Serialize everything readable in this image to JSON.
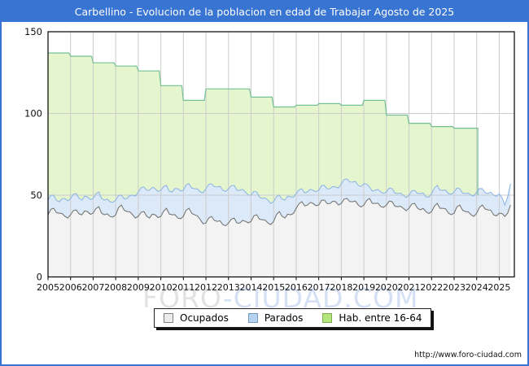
{
  "window": {
    "title": "Carbellino - Evolucion de la poblacion en edad de Trabajar Agosto de 2025",
    "footer_url": "http://www.foro-ciudad.com"
  },
  "watermark": {
    "part1": "FORO",
    "part2": "-CIUDAD.COM"
  },
  "legend": {
    "items": [
      {
        "label": "Ocupados",
        "swatch_fill": "#ececec",
        "swatch_border": "#808080"
      },
      {
        "label": "Parados",
        "swatch_fill": "#b5d2f0",
        "swatch_border": "#7599bd"
      },
      {
        "label": "Hab. entre 16-64",
        "swatch_fill": "#b5e67c",
        "swatch_border": "#7fa952"
      }
    ]
  },
  "colors": {
    "frame_blue": "#3874d2",
    "plot_border": "#000000",
    "grid": "#cccccc",
    "axis_text": "#111111",
    "background": "#ffffff"
  },
  "chart_data": {
    "type": "area",
    "title": "Carbellino - Evolucion de la poblacion en edad de Trabajar Agosto de 2025",
    "xlabel": "",
    "ylabel": "",
    "grid": true,
    "legend_position": "bottom-center",
    "x_axis": {
      "range": [
        2005,
        2025.67
      ],
      "ticks": [
        2005,
        2006,
        2007,
        2008,
        2009,
        2010,
        2011,
        2012,
        2013,
        2014,
        2015,
        2016,
        2017,
        2018,
        2019,
        2020,
        2021,
        2022,
        2023,
        2024,
        2025
      ]
    },
    "y_axis": {
      "range": [
        0,
        150
      ],
      "ticks": [
        0,
        50,
        100,
        150
      ]
    },
    "series": [
      {
        "name": "Ocupados",
        "draw": "area",
        "color_fill": "#f3f3f3",
        "color_line": "#6e6e6e",
        "x_start": 2005,
        "x_step": 0.25,
        "values": [
          38,
          42,
          39,
          37,
          38,
          41,
          38,
          40,
          39,
          43,
          38,
          37,
          38,
          44,
          40,
          38,
          37,
          40,
          36,
          38,
          37,
          42,
          38,
          36,
          37,
          42,
          38,
          35,
          33,
          37,
          34,
          32,
          33,
          36,
          33,
          34,
          34,
          38,
          35,
          33,
          34,
          40,
          36,
          38,
          42,
          46,
          44,
          45,
          44,
          47,
          45,
          46,
          45,
          48,
          46,
          44,
          44,
          48,
          45,
          43,
          44,
          46,
          43,
          42,
          42,
          45,
          41,
          40,
          40,
          45,
          42,
          39,
          39,
          44,
          40,
          38,
          39,
          44,
          41,
          38,
          39,
          37,
          44
        ]
      },
      {
        "name": "Parados",
        "draw": "area",
        "note": "drawn stacked above Ocupados; values are the visible top line (Ocupados+Parados)",
        "color_fill": "#dbe9f8",
        "color_line": "#8ab3e3",
        "x_start": 2005,
        "x_step": 0.25,
        "values": [
          47,
          50,
          46,
          48,
          48,
          51,
          47,
          49,
          48,
          52,
          47,
          46,
          47,
          50,
          48,
          50,
          52,
          55,
          53,
          54,
          53,
          56,
          52,
          54,
          53,
          57,
          54,
          52,
          54,
          57,
          55,
          53,
          54,
          56,
          53,
          52,
          50,
          52,
          48,
          47,
          46,
          50,
          47,
          49,
          51,
          54,
          52,
          53,
          53,
          56,
          54,
          55,
          57,
          60,
          58,
          56,
          57,
          55,
          53,
          52,
          52,
          54,
          51,
          50,
          50,
          53,
          51,
          49,
          51,
          56,
          53,
          51,
          52,
          54,
          51,
          50,
          52,
          54,
          51,
          50,
          51,
          44,
          57
        ]
      },
      {
        "name": "Hab. entre 16-64",
        "draw": "step-area",
        "color_fill": "#e5f6cf",
        "color_line": "#74c095",
        "years": [
          2005,
          2006,
          2007,
          2008,
          2009,
          2010,
          2011,
          2012,
          2013,
          2014,
          2015,
          2016,
          2017,
          2018,
          2019,
          2020,
          2021,
          2022,
          2023
        ],
        "values": [
          137,
          135,
          131,
          129,
          126,
          117,
          108,
          115,
          115,
          110,
          104,
          105,
          106,
          105,
          108,
          99,
          94,
          92,
          91
        ],
        "series_end_x": 2024.05,
        "end_drop_to": 50
      }
    ]
  }
}
